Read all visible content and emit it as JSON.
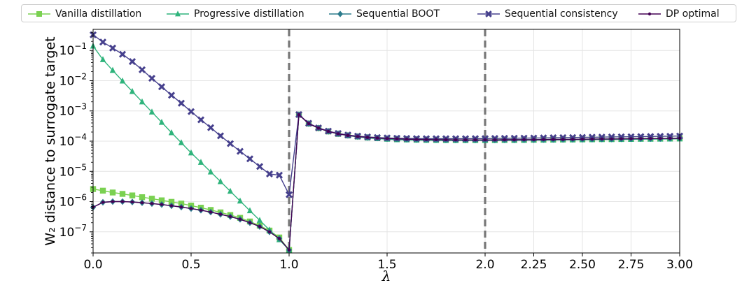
{
  "chart_data": {
    "type": "line",
    "xlabel": "λ",
    "ylabel": "W₂ distance to surrogate target",
    "yscale": "log",
    "ylim": [
      2e-08,
      0.5
    ],
    "grid": true,
    "legend_position": "top",
    "x_tick_labels": [
      "0.0",
      "0.5",
      "1.0",
      "1.5",
      "2.0",
      "2.25",
      "2.50",
      "2.75",
      "3.00"
    ],
    "y_tick_labels": [
      "10^-7",
      "10^-6",
      "10^-5",
      "10^-4",
      "10^-3",
      "10^-2",
      "10^-1"
    ],
    "vertical_lines": [
      1.0,
      2.0
    ],
    "series": [
      {
        "name": "Vanilla distillation",
        "color": "#7ad151",
        "marker": "square",
        "x": [
          0,
          0.05,
          0.1,
          0.15,
          0.2,
          0.25,
          0.3,
          0.35,
          0.4,
          0.45,
          0.5,
          0.55,
          0.6,
          0.65,
          0.7,
          0.75,
          0.8,
          0.85,
          0.9,
          0.95,
          1.0,
          1.05,
          1.1,
          1.15,
          1.2,
          1.25,
          1.3,
          1.35,
          1.4,
          1.45,
          1.5,
          1.55,
          1.6,
          1.65,
          1.7,
          1.75,
          1.8,
          1.85,
          1.9,
          1.95,
          2.0,
          2.05,
          2.1,
          2.15,
          2.2,
          2.25,
          2.3,
          2.35,
          2.4,
          2.45,
          2.5,
          2.55,
          2.6,
          2.65,
          2.7,
          2.75,
          2.8,
          2.85,
          2.9,
          2.95,
          3.0
        ],
        "y": [
          2.6e-06,
          2.3e-06,
          2e-06,
          1.8e-06,
          1.6e-06,
          1.4e-06,
          1.25e-06,
          1.1e-06,
          9.8e-07,
          8.6e-07,
          7.4e-07,
          6.3e-07,
          5.3e-07,
          4.4e-07,
          3.6e-07,
          2.9e-07,
          2.2e-07,
          1.6e-07,
          1.1e-07,
          6.5e-08,
          2.5e-08,
          0.00075,
          0.00038,
          0.00027,
          0.00021,
          0.000175,
          0.000155,
          0.000142,
          0.000133,
          0.000127,
          0.000122,
          0.000119,
          0.000116,
          0.000114,
          0.000113,
          0.000112,
          0.000111,
          0.00011,
          0.00011,
          0.00011,
          0.00011,
          0.00011,
          0.000111,
          0.000111,
          0.000112,
          0.000112,
          0.000113,
          0.000114,
          0.000114,
          0.000115,
          0.000116,
          0.000117,
          0.000118,
          0.000118,
          0.000119,
          0.00012,
          0.000121,
          0.000122,
          0.000122,
          0.000123,
          0.000124
        ]
      },
      {
        "name": "Progressive distillation",
        "color": "#2fb47c",
        "marker": "triangle",
        "x": [
          0,
          0.05,
          0.1,
          0.15,
          0.2,
          0.25,
          0.3,
          0.35,
          0.4,
          0.45,
          0.5,
          0.55,
          0.6,
          0.65,
          0.7,
          0.75,
          0.8,
          0.85,
          0.9,
          0.95,
          1.0,
          1.05,
          1.1,
          1.15,
          1.2,
          1.25,
          1.3,
          1.35,
          1.4,
          1.45,
          1.5,
          1.55,
          1.6,
          1.65,
          1.7,
          1.75,
          1.8,
          1.85,
          1.9,
          1.95,
          2.0,
          2.05,
          2.1,
          2.15,
          2.2,
          2.25,
          2.3,
          2.35,
          2.4,
          2.45,
          2.5,
          2.55,
          2.6,
          2.65,
          2.7,
          2.75,
          2.8,
          2.85,
          2.9,
          2.95,
          3.0
        ],
        "y": [
          0.14,
          0.05,
          0.022,
          0.0098,
          0.0044,
          0.002,
          0.00092,
          0.00042,
          0.00019,
          8.9e-05,
          4.1e-05,
          2e-05,
          9.6e-06,
          4.6e-06,
          2.2e-06,
          1.05e-06,
          5e-07,
          2.4e-07,
          1.15e-07,
          5.5e-08,
          2.5e-08,
          0.00075,
          0.00038,
          0.00027,
          0.00021,
          0.000175,
          0.000152,
          0.000138,
          0.000128,
          0.000121,
          0.000116,
          0.000112,
          0.00011,
          0.000108,
          0.000107,
          0.000106,
          0.000105,
          0.000105,
          0.000105,
          0.000105,
          0.000105,
          0.000105,
          0.000106,
          0.000106,
          0.000107,
          0.000108,
          0.000108,
          0.000109,
          0.00011,
          0.00011,
          0.000111,
          0.000112,
          0.000113,
          0.000113,
          0.000114,
          0.000115,
          0.000116,
          0.000116,
          0.000117,
          0.000118,
          0.000119
        ]
      },
      {
        "name": "Sequential BOOT",
        "color": "#2b7b8c",
        "marker": "diamond",
        "x": [
          0,
          0.05,
          0.1,
          0.15,
          0.2,
          0.25,
          0.3,
          0.35,
          0.4,
          0.45,
          0.5,
          0.55,
          0.6,
          0.65,
          0.7,
          0.75,
          0.8,
          0.85,
          0.9,
          0.95,
          1.0,
          1.05,
          1.1,
          1.15,
          1.2,
          1.25,
          1.3,
          1.35,
          1.4,
          1.45,
          1.5,
          1.55,
          1.6,
          1.65,
          1.7,
          1.75,
          1.8,
          1.85,
          1.9,
          1.95,
          2.0,
          2.05,
          2.1,
          2.15,
          2.2,
          2.25,
          2.3,
          2.35,
          2.4,
          2.45,
          2.5,
          2.55,
          2.6,
          2.65,
          2.7,
          2.75,
          2.8,
          2.85,
          2.9,
          2.95,
          3.0
        ],
        "y": [
          6.5e-07,
          9.5e-07,
          1e-06,
          1e-06,
          9.7e-07,
          9.2e-07,
          8.6e-07,
          8e-07,
          7.3e-07,
          6.6e-07,
          5.9e-07,
          5.2e-07,
          4.5e-07,
          3.8e-07,
          3.2e-07,
          2.6e-07,
          2e-07,
          1.5e-07,
          1e-07,
          6e-08,
          2.5e-08,
          0.00075,
          0.00038,
          0.00027,
          0.00021,
          0.000175,
          0.000155,
          0.000142,
          0.000133,
          0.000127,
          0.000122,
          0.000119,
          0.000116,
          0.000114,
          0.000113,
          0.000112,
          0.000111,
          0.00011,
          0.00011,
          0.00011,
          0.00011,
          0.00011,
          0.000111,
          0.000111,
          0.000112,
          0.000112,
          0.000113,
          0.000114,
          0.000114,
          0.000115,
          0.000116,
          0.000117,
          0.000118,
          0.000118,
          0.000119,
          0.00012,
          0.000121,
          0.000122,
          0.000122,
          0.000123,
          0.000124
        ]
      },
      {
        "name": "Sequential consistency",
        "color": "#46408d",
        "marker": "x",
        "x": [
          0,
          0.05,
          0.1,
          0.15,
          0.2,
          0.25,
          0.3,
          0.35,
          0.4,
          0.45,
          0.5,
          0.55,
          0.6,
          0.65,
          0.7,
          0.75,
          0.8,
          0.85,
          0.9,
          0.95,
          1.0,
          1.05,
          1.1,
          1.15,
          1.2,
          1.25,
          1.3,
          1.35,
          1.4,
          1.45,
          1.5,
          1.55,
          1.6,
          1.65,
          1.7,
          1.75,
          1.8,
          1.85,
          1.9,
          1.95,
          2.0,
          2.05,
          2.1,
          2.15,
          2.2,
          2.25,
          2.3,
          2.35,
          2.4,
          2.45,
          2.5,
          2.55,
          2.6,
          2.65,
          2.7,
          2.75,
          2.8,
          2.85,
          2.9,
          2.95,
          3.0
        ],
        "y": [
          0.33,
          0.19,
          0.12,
          0.075,
          0.043,
          0.023,
          0.012,
          0.0063,
          0.0033,
          0.0018,
          0.00095,
          0.00051,
          0.00028,
          0.00015,
          8.3e-05,
          4.6e-05,
          2.6e-05,
          1.45e-05,
          8.2e-06,
          7.5e-06,
          1.7e-06,
          0.00076,
          0.00039,
          0.000275,
          0.000215,
          0.00018,
          0.00016,
          0.000147,
          0.000138,
          0.000132,
          0.000128,
          0.000125,
          0.000123,
          0.000122,
          0.000121,
          0.000121,
          0.000121,
          0.000121,
          0.000121,
          0.000122,
          0.000122,
          0.000123,
          0.000124,
          0.000125,
          0.000126,
          0.000127,
          0.000128,
          0.00013,
          0.000131,
          0.000132,
          0.000134,
          0.000135,
          0.000136,
          0.000138,
          0.000139,
          0.00014,
          0.000142,
          0.000143,
          0.000145,
          0.000146,
          0.000148
        ]
      },
      {
        "name": "DP optimal",
        "color": "#440154",
        "marker": "dot",
        "x": [
          0,
          0.05,
          0.1,
          0.15,
          0.2,
          0.25,
          0.3,
          0.35,
          0.4,
          0.45,
          0.5,
          0.55,
          0.6,
          0.65,
          0.7,
          0.75,
          0.8,
          0.85,
          0.9,
          0.95,
          1.0,
          1.05,
          1.1,
          1.15,
          1.2,
          1.25,
          1.3,
          1.35,
          1.4,
          1.45,
          1.5,
          1.55,
          1.6,
          1.65,
          1.7,
          1.75,
          1.8,
          1.85,
          1.9,
          1.95,
          2.0,
          2.05,
          2.1,
          2.15,
          2.2,
          2.25,
          2.3,
          2.35,
          2.4,
          2.45,
          2.5,
          2.55,
          2.6,
          2.65,
          2.7,
          2.75,
          2.8,
          2.85,
          2.9,
          2.95,
          3.0
        ],
        "y": [
          6.5e-07,
          9.5e-07,
          1e-06,
          1e-06,
          9.7e-07,
          9.2e-07,
          8.6e-07,
          8e-07,
          7.3e-07,
          6.6e-07,
          5.9e-07,
          5.2e-07,
          4.5e-07,
          3.8e-07,
          3.2e-07,
          2.6e-07,
          2e-07,
          1.5e-07,
          1e-07,
          6e-08,
          2.5e-08,
          0.00075,
          0.00038,
          0.00027,
          0.00021,
          0.000175,
          0.000155,
          0.000142,
          0.000133,
          0.000127,
          0.000122,
          0.000119,
          0.000116,
          0.000114,
          0.000113,
          0.000112,
          0.000111,
          0.00011,
          0.00011,
          0.00011,
          0.00011,
          0.00011,
          0.000111,
          0.000111,
          0.000112,
          0.000112,
          0.000113,
          0.000114,
          0.000114,
          0.000115,
          0.000116,
          0.000117,
          0.000118,
          0.000118,
          0.000119,
          0.00012,
          0.000121,
          0.000122,
          0.000122,
          0.000123,
          0.000124
        ]
      }
    ]
  }
}
